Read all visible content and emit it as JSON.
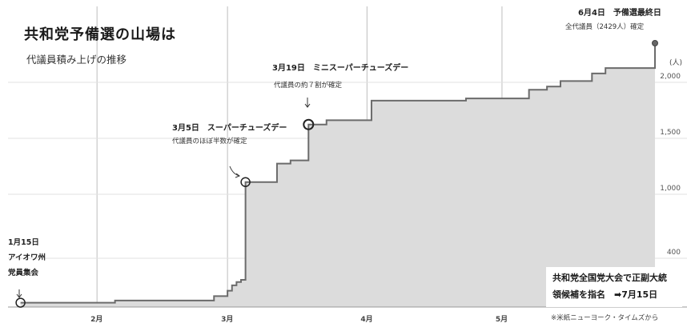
{
  "header": {
    "title": "共和党予備選の山場は",
    "subtitle": "代議員積み上げの推移"
  },
  "annotations": {
    "jan15": {
      "line1": "1月15日",
      "line2": "アイオワ州",
      "line3": "党員集会"
    },
    "mar5": {
      "head": "3月5日　スーパーチューズデー",
      "sub": "代議員のほぼ半数が確定"
    },
    "mar19": {
      "head": "3月19日　ミニスーパーチューズデー",
      "sub": "代議員の約７割が確定"
    },
    "jun4": {
      "head": "6月4日　予備選最終日",
      "sub": "全代議員（2429人）確定"
    }
  },
  "note_box": {
    "line1": "共和党全国党大会で正副大統",
    "line2": "領候補を指名　➡7月15日"
  },
  "source": "※米紙ニューヨーク・タイムズから",
  "colors": {
    "area_fill": "#dcdcdc",
    "line": "#6b6b6b",
    "grid": "#bdbdbd",
    "marker": "#222222"
  },
  "chart_data": {
    "type": "area",
    "title": "共和党予備選の山場は",
    "subtitle": "代議員積み上げの推移",
    "xlabel": "",
    "ylabel": "",
    "y_unit": "(人)",
    "x_ticks": [
      "2月",
      "3月",
      "4月",
      "5月"
    ],
    "y_ticks": [
      400,
      1000,
      1500,
      2000
    ],
    "ylim": [
      0,
      2429
    ],
    "xlim": [
      "2024-01-14",
      "2024-06-04"
    ],
    "grid": true,
    "grid_axis": "x",
    "series": [
      {
        "type": "step",
        "points": [
          [
            "2024-01-15",
            40
          ],
          [
            "2024-01-23",
            40
          ],
          [
            "2024-02-05",
            60
          ],
          [
            "2024-02-24",
            60
          ],
          [
            "2024-02-27",
            100
          ],
          [
            "2024-03-01",
            150
          ],
          [
            "2024-03-02",
            200
          ],
          [
            "2024-03-03",
            230
          ],
          [
            "2024-03-04",
            250
          ],
          [
            "2024-03-05",
            1150
          ],
          [
            "2024-03-08",
            1150
          ],
          [
            "2024-03-12",
            1320
          ],
          [
            "2024-03-15",
            1350
          ],
          [
            "2024-03-19",
            1680
          ],
          [
            "2024-03-23",
            1720
          ],
          [
            "2024-04-02",
            1900
          ],
          [
            "2024-04-23",
            1920
          ],
          [
            "2024-05-07",
            2000
          ],
          [
            "2024-05-11",
            2030
          ],
          [
            "2024-05-14",
            2080
          ],
          [
            "2024-05-21",
            2150
          ],
          [
            "2024-05-24",
            2200
          ],
          [
            "2024-06-04",
            2429
          ]
        ]
      }
    ],
    "markers": [
      {
        "x": "2024-01-15",
        "y": 40
      },
      {
        "x": "2024-03-05",
        "y": 1150
      },
      {
        "x": "2024-03-19",
        "y": 1680
      },
      {
        "x": "2024-06-04",
        "y": 2429
      }
    ]
  }
}
